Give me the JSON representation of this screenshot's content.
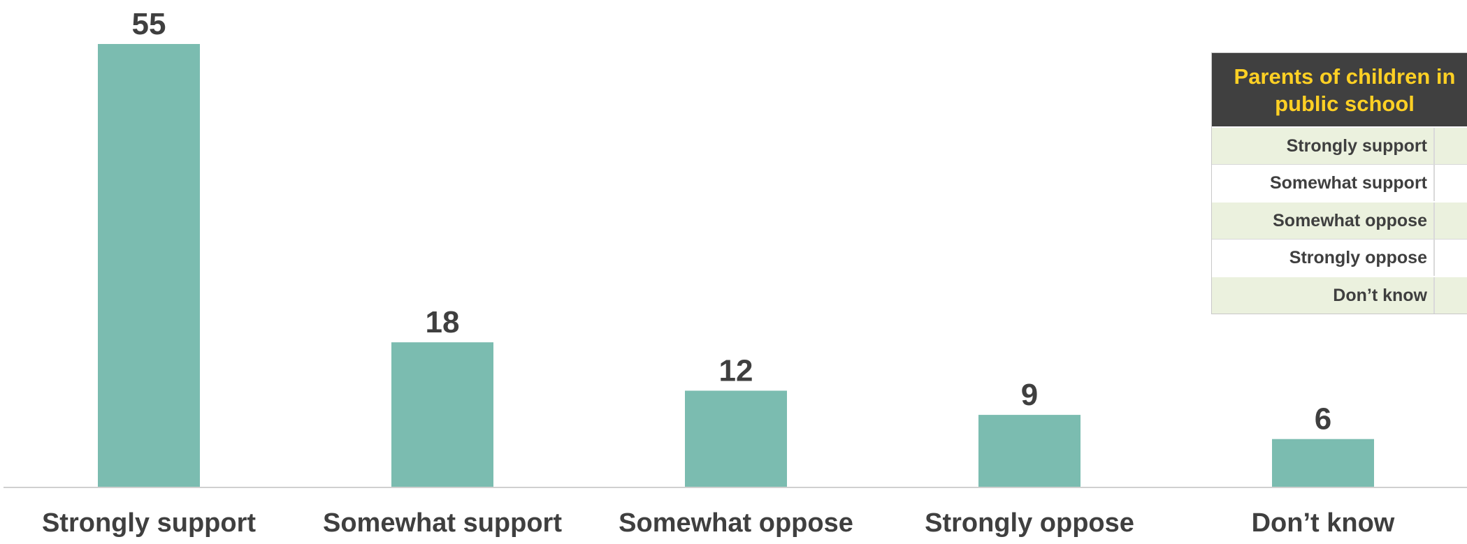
{
  "chart_data": {
    "type": "bar",
    "categories": [
      "Strongly support",
      "Somewhat support",
      "Somewhat oppose",
      "Strongly oppose",
      "Don’t know"
    ],
    "values": [
      55,
      18,
      12,
      9,
      6
    ],
    "ylim": [
      0,
      55
    ],
    "grid": false,
    "colors": {
      "bar": "#7bbcb0",
      "text": "#3f3f3f"
    }
  },
  "inset_table": {
    "title": "Parents of children in public school",
    "header_colors": {
      "background": "#404040",
      "text": "#ffd024"
    },
    "rows": [
      {
        "label": "Strongly support",
        "value": ""
      },
      {
        "label": "Somewhat support",
        "value": ""
      },
      {
        "label": "Somewhat oppose",
        "value": ""
      },
      {
        "label": "Strongly oppose",
        "value": ""
      },
      {
        "label": "Don’t know",
        "value": ""
      }
    ]
  }
}
